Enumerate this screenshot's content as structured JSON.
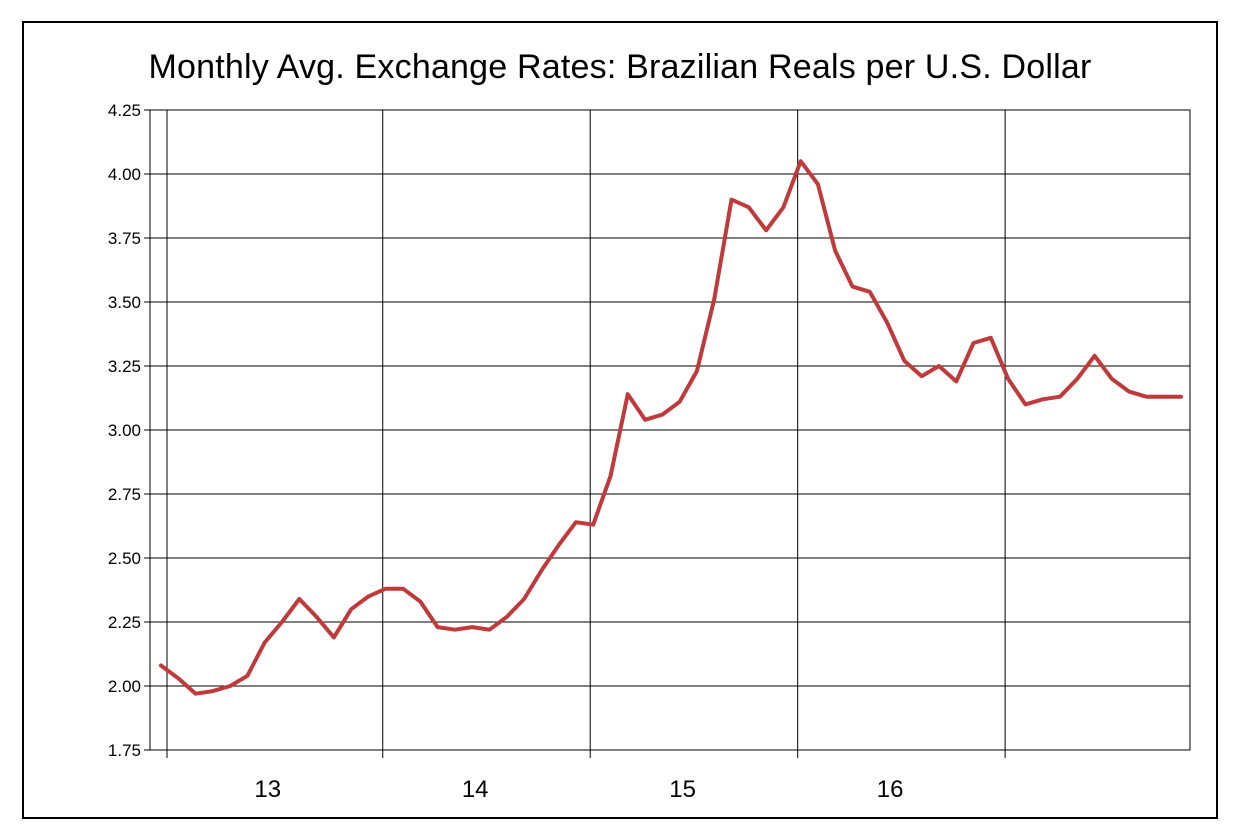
{
  "chart_data": {
    "type": "line",
    "title": "Monthly Avg. Exchange Rates: Brazilian Reals per U.S. Dollar",
    "xlabel": "",
    "ylabel": "",
    "ylim": [
      1.75,
      4.25
    ],
    "y_ticks": [
      "1.75",
      "2.00",
      "2.25",
      "2.50",
      "2.75",
      "3.00",
      "3.25",
      "3.50",
      "3.75",
      "4.00",
      "4.25"
    ],
    "x_tick_labels": [
      {
        "label": "13",
        "year": 2013
      },
      {
        "label": "14",
        "year": 2014
      },
      {
        "label": "15",
        "year": 2015
      },
      {
        "label": "16",
        "year": 2016
      }
    ],
    "grid": true,
    "line_color": "#c0393b",
    "series": [
      {
        "name": "",
        "x": [
          "2012-12",
          "2013-01",
          "2013-02",
          "2013-03",
          "2013-04",
          "2013-05",
          "2013-06",
          "2013-07",
          "2013-08",
          "2013-09",
          "2013-10",
          "2013-11",
          "2013-12",
          "2014-01",
          "2014-02",
          "2014-03",
          "2014-04",
          "2014-05",
          "2014-06",
          "2014-07",
          "2014-08",
          "2014-09",
          "2014-10",
          "2014-11",
          "2014-12",
          "2015-01",
          "2015-02",
          "2015-03",
          "2015-04",
          "2015-05",
          "2015-06",
          "2015-07",
          "2015-08",
          "2015-09",
          "2015-10",
          "2015-11",
          "2015-12",
          "2016-01",
          "2016-02",
          "2016-03",
          "2016-04",
          "2016-05",
          "2016-06",
          "2016-07",
          "2016-08",
          "2016-09",
          "2016-10",
          "2016-11",
          "2016-12",
          "2017-01",
          "2017-02",
          "2017-03",
          "2017-04",
          "2017-05",
          "2017-06",
          "2017-07",
          "2017-08",
          "2017-09",
          "2017-10",
          "2017-11"
        ],
        "values": [
          2.08,
          2.03,
          1.97,
          1.98,
          2.0,
          2.04,
          2.17,
          2.25,
          2.34,
          2.27,
          2.19,
          2.3,
          2.35,
          2.38,
          2.38,
          2.33,
          2.23,
          2.22,
          2.23,
          2.22,
          2.27,
          2.34,
          2.45,
          2.55,
          2.64,
          2.63,
          2.82,
          3.14,
          3.04,
          3.06,
          3.11,
          3.23,
          3.51,
          3.9,
          3.87,
          3.78,
          3.87,
          4.05,
          3.96,
          3.7,
          3.56,
          3.54,
          3.42,
          3.27,
          3.21,
          3.25,
          3.19,
          3.34,
          3.36,
          3.2,
          3.1,
          3.12,
          3.13,
          3.2,
          3.29,
          3.2,
          3.15,
          3.13,
          3.13,
          3.13
        ]
      }
    ]
  }
}
